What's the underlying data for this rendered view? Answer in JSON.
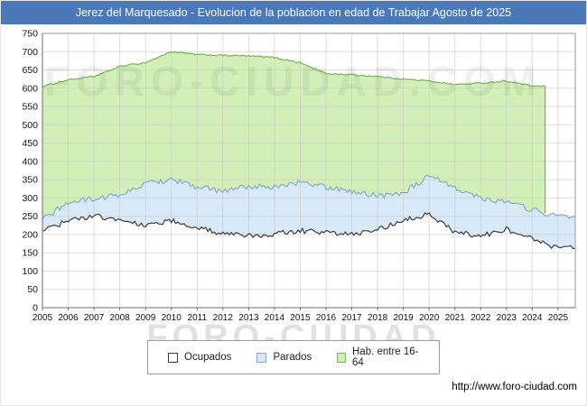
{
  "title_bar": {
    "text": "Jerez del Marquesado - Evolucion de la poblacion en edad de Trabajar Agosto de 2025",
    "bg": "#4a78b8"
  },
  "watermarks": {
    "top": "FORO-CIUDAD.COM",
    "bottom": "FORO-CIUDAD"
  },
  "legend": {
    "items": [
      {
        "label": "Ocupados",
        "fill": "#ffffff",
        "stroke": "#3c3c3c"
      },
      {
        "label": "Parados",
        "fill": "#d8e9f7",
        "stroke": "#86a9cc"
      },
      {
        "label": "Hab. entre 16-64",
        "fill": "#d3efb8",
        "stroke": "#76b44e"
      }
    ]
  },
  "footer": {
    "url": "http://www.foro-ciudad.com"
  },
  "chart_data": {
    "type": "area",
    "title": "Jerez del Marquesado - Evolucion de la poblacion en edad de Trabajar Agosto de 2025",
    "xlabel": "",
    "ylabel": "",
    "grid": true,
    "legend_position": "bottom",
    "x_start": 2005,
    "x_end": 2025.67,
    "ylim": [
      0,
      750
    ],
    "y_ticks": [
      0,
      50,
      100,
      150,
      200,
      250,
      300,
      350,
      400,
      450,
      500,
      550,
      600,
      650,
      700,
      750
    ],
    "x_ticks": [
      2005,
      2006,
      2007,
      2008,
      2009,
      2010,
      2011,
      2012,
      2013,
      2014,
      2015,
      2016,
      2017,
      2018,
      2019,
      2020,
      2021,
      2022,
      2023,
      2024,
      2025
    ],
    "note": "Overlapping areas drawn back-to-front; each series' values are the plotted top edge read from the y axis. 'Parados' top edge = Ocupados + Parados. Green population series ends mid-2024 with a vertical drop.",
    "series": [
      {
        "name": "Hab. entre 16-64",
        "start_year": 2005,
        "ends_at": 2024.5,
        "fill": "#d3efb8",
        "stroke": "#76b44e",
        "noise": 2,
        "values": [
          605,
          623,
          632,
          660,
          670,
          700,
          692,
          690,
          688,
          684,
          670,
          640,
          637,
          632,
          625,
          620,
          610,
          614,
          620,
          606
        ]
      },
      {
        "name": "Parados",
        "start_year": 2005,
        "ends_at": 2025.67,
        "fill": "#d8e9f7",
        "stroke": "#86a9cc",
        "noise": 8,
        "values": [
          240,
          288,
          298,
          308,
          338,
          352,
          330,
          318,
          332,
          330,
          342,
          330,
          318,
          306,
          315,
          358,
          330,
          300,
          290,
          268,
          250
        ]
      },
      {
        "name": "Ocupados",
        "start_year": 2005,
        "ends_at": 2025.67,
        "fill": "#ffffff",
        "stroke": "#3c3c3c",
        "noise": 7,
        "values": [
          210,
          237,
          250,
          240,
          226,
          238,
          220,
          200,
          196,
          202,
          210,
          206,
          200,
          212,
          238,
          256,
          206,
          196,
          214,
          188,
          163
        ]
      }
    ]
  }
}
